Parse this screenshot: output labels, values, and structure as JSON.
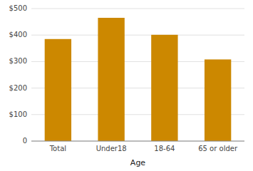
{
  "chart_data": {
    "type": "bar",
    "categories": [
      "Total",
      "Under18",
      "18-64",
      "65 or older"
    ],
    "values": [
      385,
      465,
      401,
      308
    ],
    "color": "#CC8800",
    "xlabel": "Age",
    "ylim": [
      0,
      500
    ],
    "yticks": [
      0,
      {
        "value": 100,
        "label": "$100"
      },
      {
        "value": 200,
        "label": "$200"
      },
      {
        "value": 300,
        "label": "$300"
      },
      {
        "value": 400,
        "label": "$400"
      },
      {
        "value": 500,
        "label": "$500"
      }
    ],
    "grid": true
  }
}
